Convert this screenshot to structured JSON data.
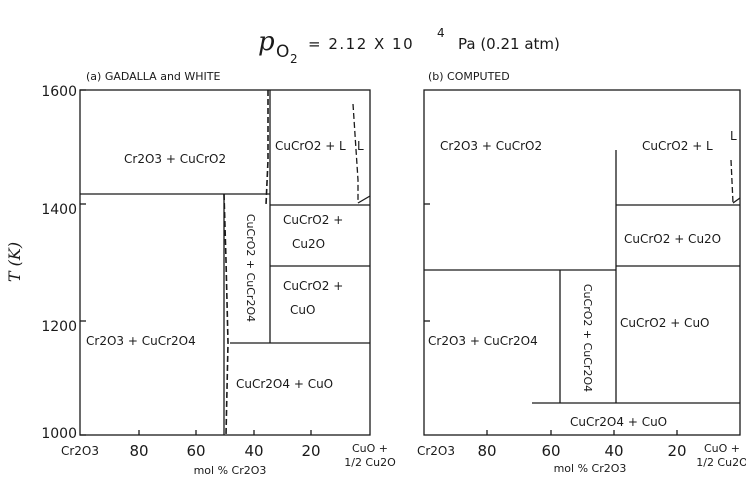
{
  "title": {
    "symbol": "p",
    "subscript": "O",
    "subsub": "2",
    "expr": "= 2.12 X 10",
    "exponent": "4",
    "unit": "Pa (0.21 atm)"
  },
  "y_axis": {
    "label": "T (K)",
    "ticks": [
      "1600",
      "1400",
      "1200",
      "1000"
    ],
    "range": [
      1000,
      1600
    ]
  },
  "x_axis": {
    "label": "mol % Cr2O3",
    "tick_values": [
      "80",
      "60",
      "40",
      "20"
    ],
    "left_end": "Cr2O3",
    "right_end_top": "CuO +",
    "right_end_bottom": "1/2 Cu2O",
    "range": [
      100,
      0
    ]
  },
  "panels": [
    {
      "caption": "(a) GADALLA and WHITE",
      "regions": [
        "Cr2O3 + CuCrO2",
        "CuCrO2 + L",
        "L",
        "CuCrO2 +",
        "Cu2O",
        "CuCrO2 + CuCr2O4",
        "CuCrO2 +",
        "CuO",
        "Cr2O3 + CuCr2O4",
        "CuCr2O4 + CuO"
      ]
    },
    {
      "caption": "(b) COMPUTED",
      "regions": [
        "Cr2O3 + CuCrO2",
        "CuCrO2 + L",
        "L",
        "CuCrO2 + Cu2O",
        "CuCrO2 + CuCr2O4",
        "CuCrO2 + CuO",
        "Cr2O3 + CuCr2O4",
        "CuCr2O4 + CuO"
      ]
    }
  ]
}
